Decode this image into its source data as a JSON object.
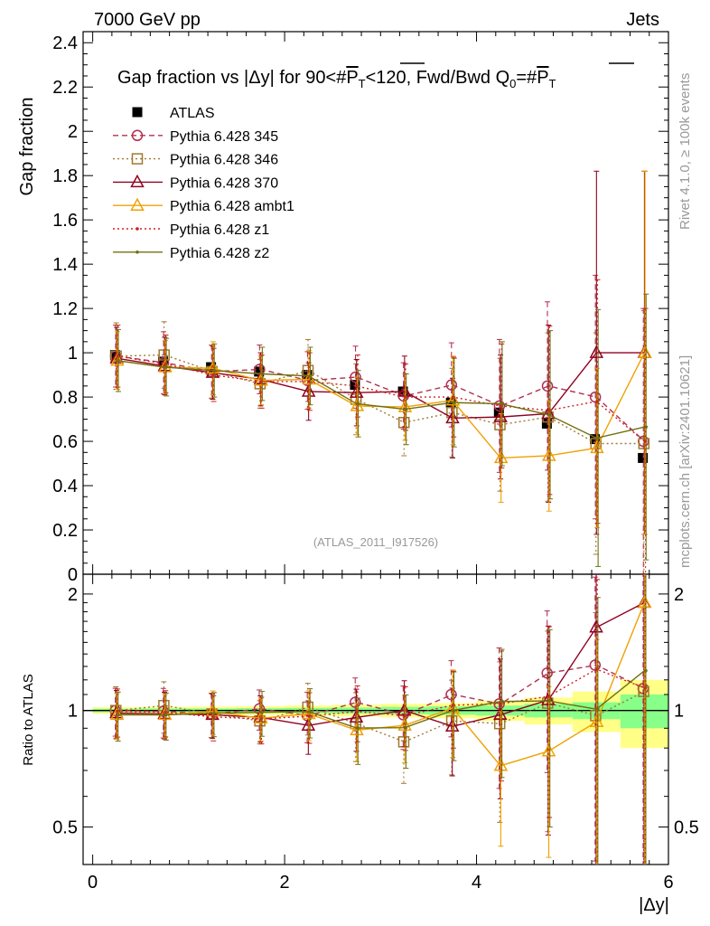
{
  "header": {
    "left": "7000 GeV pp",
    "right": "Jets"
  },
  "side_labels": {
    "rivet": "Rivet 4.1.0, ≥ 100k events",
    "mcplots": "mcplots.cern.ch [arXiv:2401.10621]"
  },
  "chart_data": [
    {
      "type": "scatter",
      "panel": "main",
      "title": "Gap fraction vs |Δy| for 90<#P̅T<120, Fwd/Bwd Q0=#P̅T",
      "title_parts": {
        "prefix": "Gap fraction vs |Δy| for 90<#",
        "p": "P",
        "t": "T",
        "mid": "<120, Fwd/Bwd Q",
        "q_sub": "0",
        "eq": "=#"
      },
      "watermark": "(ATLAS_2011_I917526)",
      "xlabel": "|Δy|",
      "ylabel": "Gap fraction",
      "xlim": [
        -0.1,
        6.0
      ],
      "ylim": [
        0,
        2.45
      ],
      "x_ticks": [
        "0",
        "2",
        "4",
        "6"
      ],
      "y_ticks": [
        "0",
        "0.2",
        "0.4",
        "0.6",
        "0.8",
        "1",
        "1.2",
        "1.4",
        "1.6",
        "1.8",
        "2",
        "2.2",
        "2.4"
      ],
      "legend_position": "top-left",
      "x": [
        0.25,
        0.75,
        1.25,
        1.75,
        2.25,
        2.75,
        3.25,
        3.75,
        4.25,
        4.75,
        5.25,
        5.75
      ],
      "series": [
        {
          "name": "ATLAS",
          "color": "#000000",
          "style": "data",
          "marker": "filled-square",
          "values": [
            0.99,
            0.96,
            0.935,
            0.915,
            0.9,
            0.855,
            0.825,
            0.775,
            0.73,
            0.68,
            0.61,
            0.525
          ]
        },
        {
          "name": "Pythia 6.428 345",
          "color": "#b03050",
          "style": "dashed",
          "marker": "open-circle",
          "values": [
            0.985,
            0.955,
            0.915,
            0.925,
            0.875,
            0.89,
            0.805,
            0.855,
            0.76,
            0.85,
            0.8,
            0.6
          ],
          "err": [
            0.14,
            0.14,
            0.12,
            0.11,
            0.13,
            0.14,
            0.15,
            0.19,
            0.3,
            0.38,
            0.55,
            0.6
          ]
        },
        {
          "name": "Pythia 6.428 346",
          "color": "#a07830",
          "style": "dotted",
          "marker": "open-square",
          "values": [
            0.985,
            0.99,
            0.915,
            0.86,
            0.92,
            0.79,
            0.685,
            0.73,
            0.675,
            0.71,
            0.59,
            0.59
          ],
          "err": [
            0.15,
            0.15,
            0.12,
            0.11,
            0.14,
            0.16,
            0.15,
            0.2,
            0.3,
            0.38,
            0.5,
            0.6
          ]
        },
        {
          "name": "Pythia 6.428 370",
          "color": "#900020",
          "style": "solid",
          "marker": "open-triangle",
          "values": [
            0.975,
            0.94,
            0.91,
            0.88,
            0.825,
            0.82,
            0.825,
            0.705,
            0.71,
            0.725,
            1.0,
            1.0
          ],
          "err": [
            0.14,
            0.13,
            0.12,
            0.12,
            0.13,
            0.15,
            0.16,
            0.18,
            0.28,
            0.4,
            0.82,
            0.82
          ]
        },
        {
          "name": "Pythia 6.428 ambt1",
          "color": "#f0a000",
          "style": "solid",
          "marker": "open-triangle",
          "values": [
            0.965,
            0.935,
            0.93,
            0.875,
            0.88,
            0.76,
            0.755,
            0.785,
            0.525,
            0.535,
            0.57,
            1.0
          ],
          "err": [
            0.13,
            0.12,
            0.12,
            0.11,
            0.13,
            0.13,
            0.15,
            0.2,
            0.2,
            0.25,
            0.36,
            0.82
          ]
        },
        {
          "name": "Pythia 6.428 z1",
          "color": "#d02020",
          "style": "dotted",
          "marker": "small-dot",
          "values": [
            0.985,
            0.95,
            0.9,
            0.87,
            0.87,
            0.85,
            0.8,
            0.8,
            0.76,
            0.74,
            0.78,
            0.6
          ],
          "err": [
            0.14,
            0.13,
            0.12,
            0.12,
            0.13,
            0.14,
            0.15,
            0.18,
            0.28,
            0.38,
            0.55,
            0.6
          ]
        },
        {
          "name": "Pythia 6.428 z2",
          "color": "#707010",
          "style": "solid",
          "marker": "small-dot",
          "values": [
            0.965,
            0.935,
            0.92,
            0.905,
            0.895,
            0.77,
            0.745,
            0.775,
            0.77,
            0.72,
            0.615,
            0.665
          ],
          "err": [
            0.14,
            0.13,
            0.12,
            0.12,
            0.13,
            0.15,
            0.16,
            0.2,
            0.28,
            0.38,
            0.58,
            0.6
          ]
        }
      ]
    },
    {
      "type": "line",
      "panel": "ratio",
      "ylabel": "Ratio to ATLAS",
      "xlim": [
        -0.1,
        6.0
      ],
      "ylim": [
        0.4,
        2.25
      ],
      "y_scale": "log",
      "y_ticks": [
        "0.5",
        "1",
        "2"
      ],
      "x": [
        0.25,
        0.75,
        1.25,
        1.75,
        2.25,
        2.75,
        3.25,
        3.75,
        4.25,
        4.75,
        5.25,
        5.75
      ],
      "band_inner": [
        0.01,
        0.012,
        0.012,
        0.014,
        0.016,
        0.018,
        0.022,
        0.025,
        0.03,
        0.04,
        0.05,
        0.1
      ],
      "band_outer": [
        0.02,
        0.022,
        0.024,
        0.026,
        0.03,
        0.035,
        0.04,
        0.045,
        0.06,
        0.08,
        0.12,
        0.2
      ],
      "series": [
        {
          "name": "Pythia 6.428 345",
          "values": [
            1.0,
            0.995,
            0.98,
            1.01,
            0.97,
            1.05,
            0.975,
            1.1,
            1.04,
            1.25,
            1.31,
            1.14
          ]
        },
        {
          "name": "Pythia 6.428 346",
          "values": [
            1.0,
            1.03,
            0.98,
            0.94,
            1.02,
            0.925,
            0.83,
            0.94,
            0.925,
            1.045,
            0.97,
            1.12
          ]
        },
        {
          "name": "Pythia 6.428 370",
          "values": [
            0.985,
            0.98,
            0.975,
            0.96,
            0.915,
            0.96,
            1.0,
            0.91,
            0.975,
            1.065,
            1.64,
            1.9
          ]
        },
        {
          "name": "Pythia 6.428 ambt1",
          "values": [
            0.975,
            0.975,
            0.995,
            0.955,
            0.98,
            0.89,
            0.915,
            1.015,
            0.72,
            0.785,
            0.935,
            1.9
          ]
        },
        {
          "name": "Pythia 6.428 z1",
          "values": [
            0.995,
            0.99,
            0.963,
            0.951,
            0.967,
            0.994,
            0.97,
            1.032,
            1.041,
            1.088,
            1.279,
            1.143
          ]
        },
        {
          "name": "Pythia 6.428 z2",
          "values": [
            0.975,
            0.974,
            0.984,
            0.989,
            0.994,
            0.901,
            0.903,
            1.0,
            1.055,
            1.059,
            1.008,
            1.267
          ]
        }
      ]
    }
  ]
}
